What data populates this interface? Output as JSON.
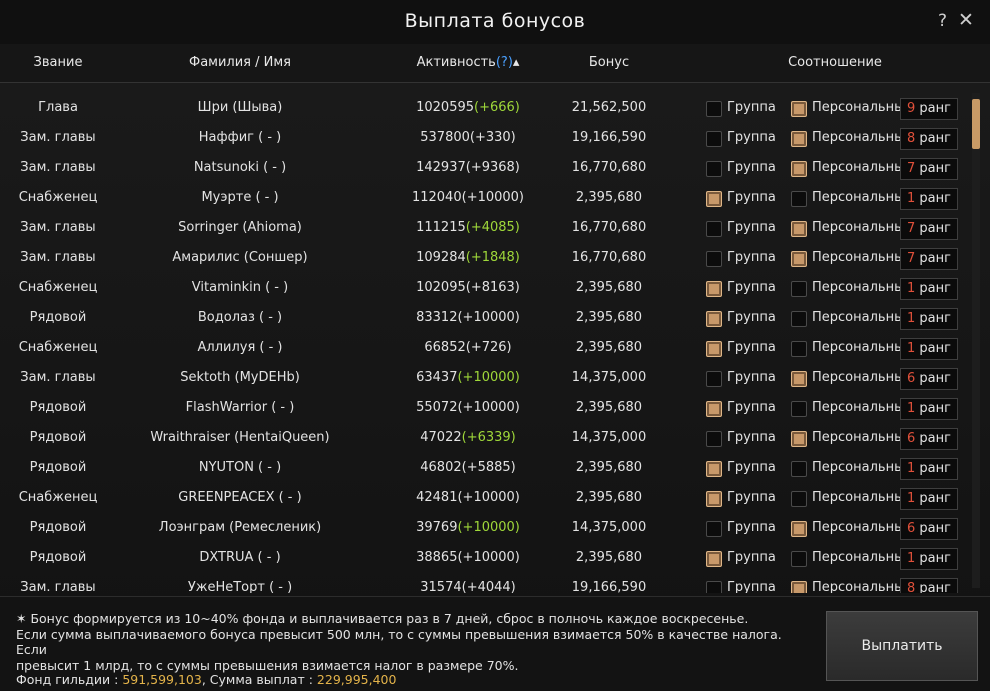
{
  "window": {
    "title": "Выплата бонусов",
    "help": "?",
    "close": "✕"
  },
  "header": {
    "rank": "Звание",
    "name": "Фамилия / Имя",
    "activity": "Активность",
    "activity_help": "(?)",
    "sort_arrow": "▴",
    "bonus": "Бонус",
    "ratio": "Соотношение"
  },
  "option_labels": {
    "group": "Группа",
    "personal": "Персональный",
    "rank_suffix": "ранг"
  },
  "rows": [
    {
      "rank": "Глава",
      "name": "Шри (Шыва)",
      "activity_base": "1020595",
      "activity_delta": "(+666)",
      "delta_green": true,
      "bonus": "21,562,500",
      "group": false,
      "personal": true,
      "rank_level": "9"
    },
    {
      "rank": "Зам. главы",
      "name": "Наффиг ( - )",
      "activity_base": "537800",
      "activity_delta": "(+330)",
      "delta_green": false,
      "bonus": "19,166,590",
      "group": false,
      "personal": true,
      "rank_level": "8"
    },
    {
      "rank": "Зам. главы",
      "name": "Natsunoki ( - )",
      "activity_base": "142937",
      "activity_delta": "(+9368)",
      "delta_green": false,
      "bonus": "16,770,680",
      "group": false,
      "personal": true,
      "rank_level": "7"
    },
    {
      "rank": "Снабженец",
      "name": "Муэрте ( - )",
      "activity_base": "112040",
      "activity_delta": "(+10000)",
      "delta_green": false,
      "bonus": "2,395,680",
      "group": true,
      "personal": false,
      "rank_level": "1"
    },
    {
      "rank": "Зам. главы",
      "name": "Sorringer (Ahioma)",
      "activity_base": "111215",
      "activity_delta": "(+4085)",
      "delta_green": true,
      "bonus": "16,770,680",
      "group": false,
      "personal": true,
      "rank_level": "7"
    },
    {
      "rank": "Зам. главы",
      "name": "Амарилис (Соншер)",
      "activity_base": "109284",
      "activity_delta": "(+1848)",
      "delta_green": true,
      "bonus": "16,770,680",
      "group": false,
      "personal": true,
      "rank_level": "7"
    },
    {
      "rank": "Снабженец",
      "name": "Vitaminkin ( - )",
      "activity_base": "102095",
      "activity_delta": "(+8163)",
      "delta_green": false,
      "bonus": "2,395,680",
      "group": true,
      "personal": false,
      "rank_level": "1"
    },
    {
      "rank": "Рядовой",
      "name": "Водолаз ( - )",
      "activity_base": "83312",
      "activity_delta": "(+10000)",
      "delta_green": false,
      "bonus": "2,395,680",
      "group": true,
      "personal": false,
      "rank_level": "1"
    },
    {
      "rank": "Снабженец",
      "name": "Аллилуя ( - )",
      "activity_base": "66852",
      "activity_delta": "(+726)",
      "delta_green": false,
      "bonus": "2,395,680",
      "group": true,
      "personal": false,
      "rank_level": "1"
    },
    {
      "rank": "Зам. главы",
      "name": "Sektoth (MyDEHb)",
      "activity_base": "63437",
      "activity_delta": "(+10000)",
      "delta_green": true,
      "bonus": "14,375,000",
      "group": false,
      "personal": true,
      "rank_level": "6"
    },
    {
      "rank": "Рядовой",
      "name": "FlashWarrior ( - )",
      "activity_base": "55072",
      "activity_delta": "(+10000)",
      "delta_green": false,
      "bonus": "2,395,680",
      "group": true,
      "personal": false,
      "rank_level": "1"
    },
    {
      "rank": "Рядовой",
      "name": "Wraithraiser (HentaiQueen)",
      "activity_base": "47022",
      "activity_delta": "(+6339)",
      "delta_green": true,
      "bonus": "14,375,000",
      "group": false,
      "personal": true,
      "rank_level": "6"
    },
    {
      "rank": "Рядовой",
      "name": "NYUTON ( - )",
      "activity_base": "46802",
      "activity_delta": "(+5885)",
      "delta_green": false,
      "bonus": "2,395,680",
      "group": true,
      "personal": false,
      "rank_level": "1"
    },
    {
      "rank": "Снабженец",
      "name": "GREENPEACEX ( - )",
      "activity_base": "42481",
      "activity_delta": "(+10000)",
      "delta_green": false,
      "bonus": "2,395,680",
      "group": true,
      "personal": false,
      "rank_level": "1"
    },
    {
      "rank": "Рядовой",
      "name": "Лоэнграм (Ремесленик)",
      "activity_base": "39769",
      "activity_delta": "(+10000)",
      "delta_green": true,
      "bonus": "14,375,000",
      "group": false,
      "personal": true,
      "rank_level": "6"
    },
    {
      "rank": "Рядовой",
      "name": "DXTRUA ( - )",
      "activity_base": "38865",
      "activity_delta": "(+10000)",
      "delta_green": false,
      "bonus": "2,395,680",
      "group": true,
      "personal": false,
      "rank_level": "1"
    },
    {
      "rank": "Зам. главы",
      "name": "УжеНеТорт ( - )",
      "activity_base": "31574",
      "activity_delta": "(+4044)",
      "delta_green": false,
      "bonus": "19,166,590",
      "group": false,
      "personal": true,
      "rank_level": "8"
    }
  ],
  "footer": {
    "note_lines": [
      "✶ Бонус формируется из 10~40% фонда и выплачивается раз в 7 дней, сброс в полночь каждое воскресенье.",
      "Если сумма выплачиваемого бонуса превысит 500 млн, то с суммы превышения взимается 50% в качестве налога. Если",
      "превысит 1 млрд, то с суммы превышения взимается налог в размере 70%."
    ],
    "fund_label": "Фонд гильдии :",
    "fund_value": "591,599,103",
    "sum_label": ", Сумма выплат :",
    "sum_value": "229,995,400",
    "pay_button": "Выплатить"
  },
  "colors": {
    "accent_check": "#c8996a",
    "rank_number": "#e0503a",
    "gold": "#e3b34a",
    "delta_green": "#9fd83a"
  }
}
